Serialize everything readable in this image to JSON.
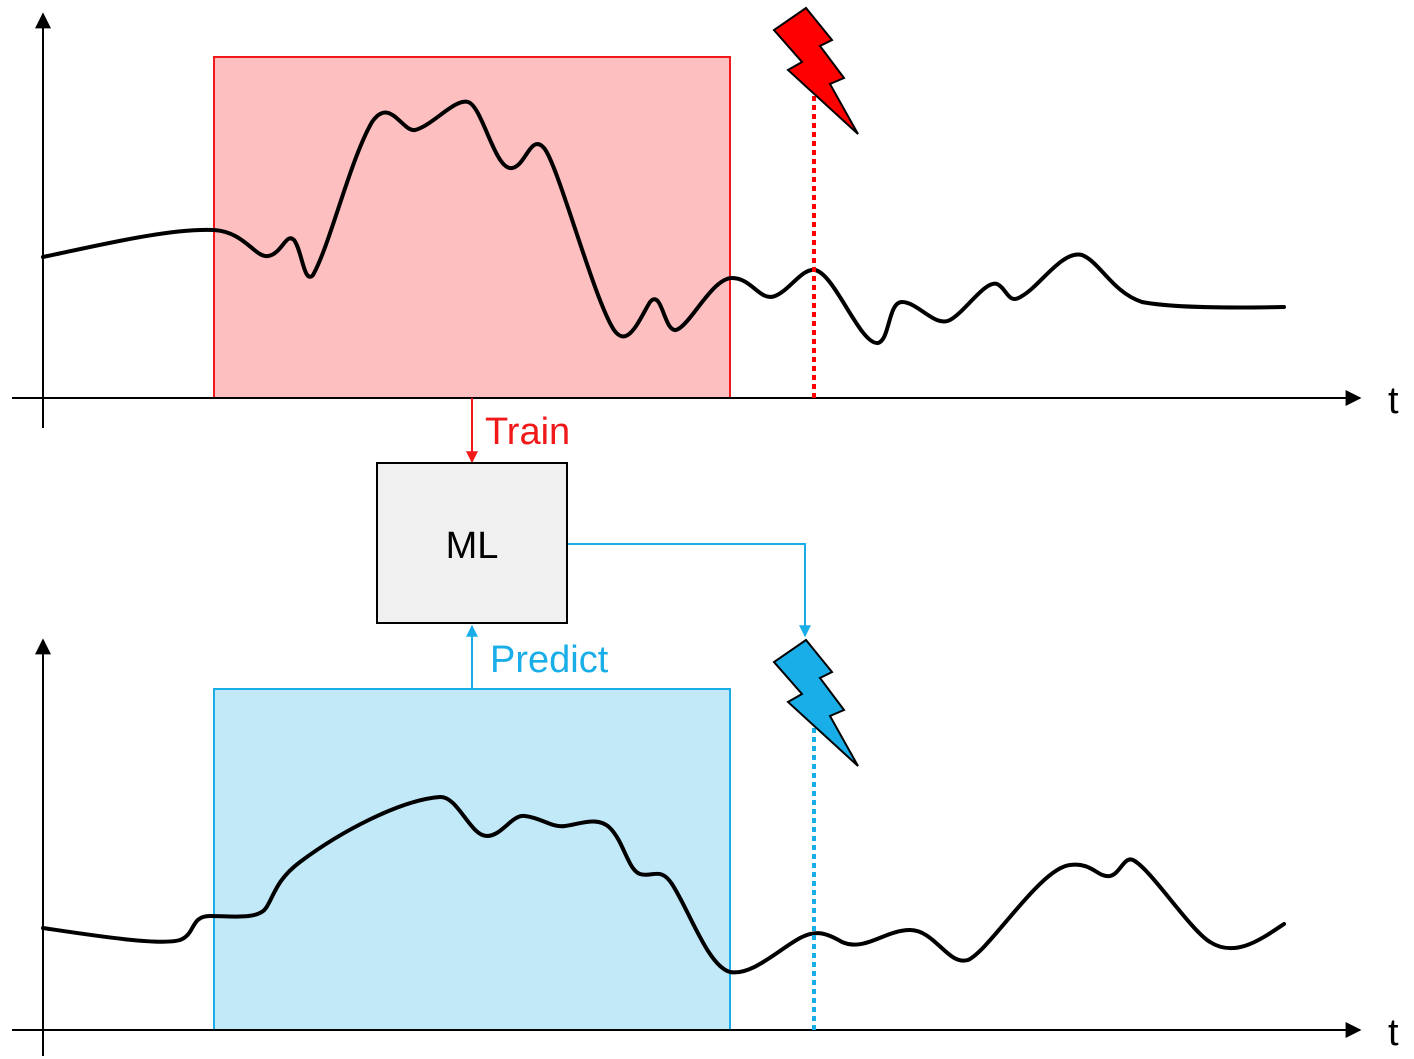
{
  "top_plot": {
    "axis_label": "t",
    "window_fill": "#fdbfbf",
    "window_stroke": "#f01818",
    "event_color": "#ff0000"
  },
  "bottom_plot": {
    "axis_label": "t",
    "window_fill": "#c2e9f8",
    "window_stroke": "#1aaee8",
    "event_color": "#1aaee8"
  },
  "train_label": "Train",
  "predict_label": "Predict",
  "model_box": {
    "label": "ML",
    "fill": "#f0f0f0"
  },
  "icons": {
    "top_event": "lightning-bolt-icon",
    "bottom_event": "lightning-bolt-icon"
  }
}
